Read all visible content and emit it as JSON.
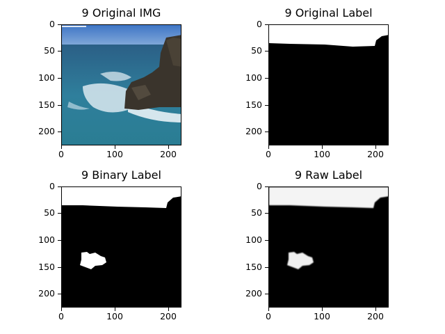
{
  "figure": {
    "panels": [
      {
        "title": "9 Original IMG"
      },
      {
        "title": "9 Original Label"
      },
      {
        "title": "9 Binary Label"
      },
      {
        "title": "9 Raw Label"
      }
    ],
    "axes": {
      "y_ticks": [
        "0",
        "50",
        "100",
        "150",
        "200"
      ],
      "x_ticks": [
        "0",
        "100",
        "200"
      ]
    }
  },
  "colors": {
    "sky": "#4f85d0",
    "sea_deep": "#1e5a7a",
    "sea_mid": "#2f7f9c",
    "rock": "#3a342c",
    "foam": "#e8f2f6",
    "mask_on": "#ffffff",
    "mask_off": "#000000"
  }
}
